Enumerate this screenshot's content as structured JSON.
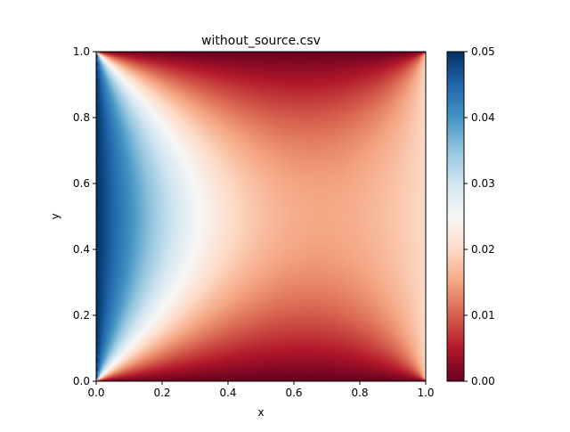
{
  "chart_data": {
    "type": "heatmap",
    "title": "without_source.csv",
    "xlabel": "x",
    "ylabel": "y",
    "xlim": [
      0.0,
      1.0
    ],
    "ylim": [
      0.0,
      1.0
    ],
    "x_ticks": [
      "0.0",
      "0.2",
      "0.4",
      "0.6",
      "0.8",
      "1.0"
    ],
    "y_ticks": [
      "0.0",
      "0.2",
      "0.4",
      "0.6",
      "0.8",
      "1.0"
    ],
    "colorbar": {
      "colormap": "RdBu",
      "vmin": 0.0,
      "vmax": 0.05,
      "ticks": [
        "0.00",
        "0.01",
        "0.02",
        "0.03",
        "0.04",
        "0.05"
      ]
    },
    "grid": false,
    "field_description": "Scalar field: 0.05 along left edge x=0, 0 along top/bottom edges y=0 and y=1, about 0.02 along right edge x=1"
  }
}
